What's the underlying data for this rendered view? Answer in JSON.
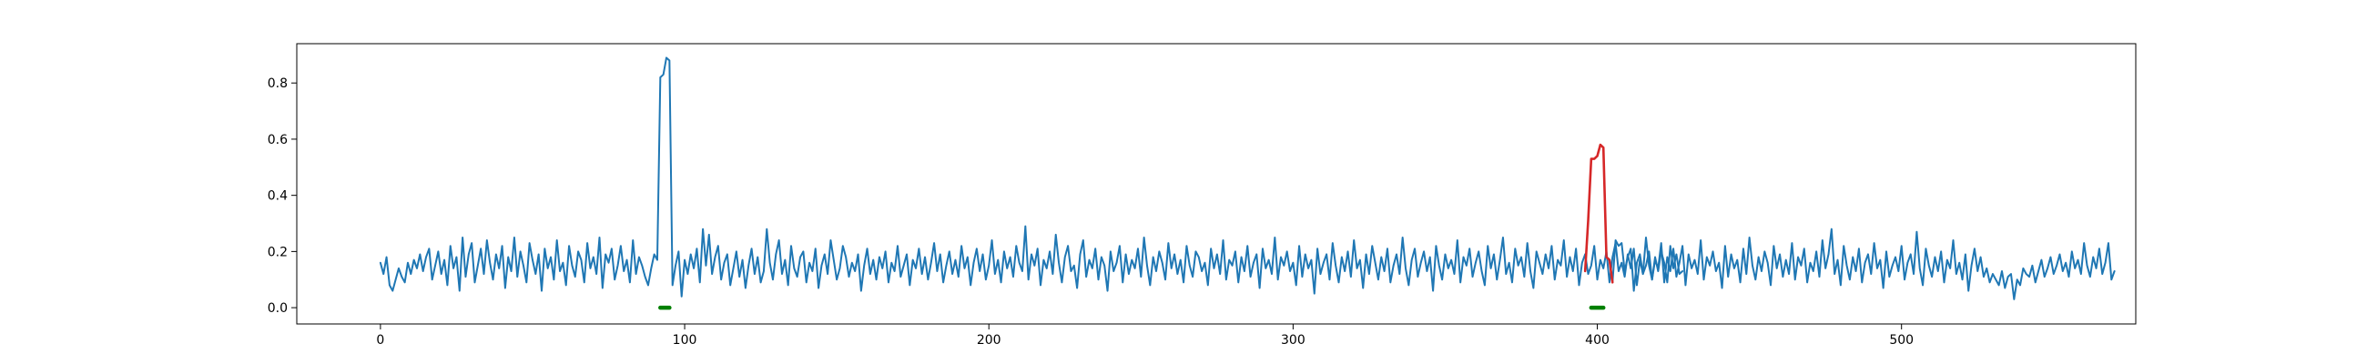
{
  "chart_data": {
    "type": "line",
    "title": "",
    "xlabel": "",
    "ylabel": "",
    "xlim": [
      -27.5,
      577
    ],
    "ylim": [
      -0.058,
      0.94
    ],
    "grid": false,
    "legend": null,
    "x_ticks": [
      {
        "value": 0,
        "label": "0"
      },
      {
        "value": 100,
        "label": "100"
      },
      {
        "value": 200,
        "label": "200"
      },
      {
        "value": 300,
        "label": "300"
      },
      {
        "value": 400,
        "label": "400"
      },
      {
        "value": 500,
        "label": "500"
      }
    ],
    "y_ticks": [
      {
        "value": 0.0,
        "label": "0.0"
      },
      {
        "value": 0.2,
        "label": "0.2"
      },
      {
        "value": 0.4,
        "label": "0.4"
      },
      {
        "value": 0.6,
        "label": "0.6"
      },
      {
        "value": 0.8,
        "label": "0.8"
      }
    ],
    "series": [
      {
        "color": "#1f77b4",
        "segments": [
          {
            "x_start": 0,
            "step": 1,
            "values": [
              0.16,
              0.12,
              0.18,
              0.08,
              0.06,
              0.1,
              0.14,
              0.11,
              0.09,
              0.16,
              0.12,
              0.17,
              0.14,
              0.19,
              0.13,
              0.18,
              0.21,
              0.1,
              0.15,
              0.2,
              0.12,
              0.17,
              0.08,
              0.22,
              0.14,
              0.18,
              0.06,
              0.25,
              0.11,
              0.19,
              0.23,
              0.09,
              0.15,
              0.21,
              0.12,
              0.24,
              0.16,
              0.1,
              0.19,
              0.14,
              0.22,
              0.07,
              0.18,
              0.13,
              0.25,
              0.11,
              0.2,
              0.15,
              0.09,
              0.23,
              0.17,
              0.12,
              0.19,
              0.06,
              0.21,
              0.14,
              0.18,
              0.1,
              0.24,
              0.13,
              0.16,
              0.08,
              0.22,
              0.15,
              0.11,
              0.2,
              0.17,
              0.09,
              0.23,
              0.14,
              0.18,
              0.12,
              0.25,
              0.07,
              0.19,
              0.16,
              0.21,
              0.1,
              0.15,
              0.22,
              0.13,
              0.17,
              0.09,
              0.24,
              0.12,
              0.18,
              0.15,
              0.11,
              0.08,
              0.14,
              0.19,
              0.17,
              0.82,
              0.83,
              0.89,
              0.88,
              0.08,
              0.15,
              0.2,
              0.04,
              0.17,
              0.12,
              0.19,
              0.14,
              0.21,
              0.09,
              0.28,
              0.15,
              0.26,
              0.12,
              0.18,
              0.22,
              0.1,
              0.16,
              0.19,
              0.08,
              0.14,
              0.2,
              0.11,
              0.17,
              0.07,
              0.15,
              0.21,
              0.12,
              0.18,
              0.09,
              0.13,
              0.28,
              0.16,
              0.1,
              0.19,
              0.24,
              0.12,
              0.17,
              0.08,
              0.22,
              0.14,
              0.11,
              0.18,
              0.2,
              0.09,
              0.16,
              0.13,
              0.21,
              0.07,
              0.15,
              0.19,
              0.12,
              0.24,
              0.17,
              0.1,
              0.14,
              0.22,
              0.18,
              0.11,
              0.16,
              0.13,
              0.19,
              0.06,
              0.15,
              0.21,
              0.12,
              0.17,
              0.1,
              0.18,
              0.14,
              0.2,
              0.09,
              0.16,
              0.13,
              0.22,
              0.11,
              0.15,
              0.19,
              0.08,
              0.17,
              0.14,
              0.21,
              0.12,
              0.18,
              0.1,
              0.16,
              0.23,
              0.13,
              0.19,
              0.09,
              0.15,
              0.2,
              0.12,
              0.17,
              0.11,
              0.22,
              0.14,
              0.18,
              0.08,
              0.16,
              0.21,
              0.13,
              0.19,
              0.1,
              0.15,
              0.24,
              0.12,
              0.17,
              0.09,
              0.2,
              0.14,
              0.18,
              0.11,
              0.22,
              0.16,
              0.13,
              0.29,
              0.1,
              0.19,
              0.15,
              0.21,
              0.08,
              0.17,
              0.14,
              0.2,
              0.12,
              0.26,
              0.16,
              0.09,
              0.18,
              0.22,
              0.13,
              0.15,
              0.07,
              0.19,
              0.24,
              0.11,
              0.17,
              0.14,
              0.21,
              0.1,
              0.18,
              0.15,
              0.06,
              0.2,
              0.13,
              0.16,
              0.22,
              0.09,
              0.19,
              0.12,
              0.17,
              0.14,
              0.21,
              0.11,
              0.25,
              0.15,
              0.08,
              0.18,
              0.13,
              0.2,
              0.16,
              0.1,
              0.23,
              0.14,
              0.19,
              0.12,
              0.17,
              0.09,
              0.22,
              0.15,
              0.11,
              0.2,
              0.18,
              0.13,
              0.16,
              0.08,
              0.21,
              0.14,
              0.19,
              0.12,
              0.24,
              0.1,
              0.17,
              0.15,
              0.2,
              0.09,
              0.18,
              0.13,
              0.22,
              0.11,
              0.16,
              0.19,
              0.07,
              0.21,
              0.14,
              0.17,
              0.12,
              0.25,
              0.1,
              0.18,
              0.15,
              0.2,
              0.13,
              0.16,
              0.08,
              0.22,
              0.11,
              0.19,
              0.14,
              0.17,
              0.05,
              0.21,
              0.12,
              0.16,
              0.19,
              0.1,
              0.23,
              0.15,
              0.09,
              0.18,
              0.13,
              0.2,
              0.11,
              0.24,
              0.14,
              0.17,
              0.07,
              0.19,
              0.12,
              0.22,
              0.16,
              0.1,
              0.18,
              0.13,
              0.21,
              0.09,
              0.15,
              0.19,
              0.12,
              0.25,
              0.14,
              0.08,
              0.17,
              0.21,
              0.11,
              0.16,
              0.2,
              0.13,
              0.18,
              0.06,
              0.22,
              0.15,
              0.1,
              0.19,
              0.14,
              0.17,
              0.12,
              0.24,
              0.09,
              0.18,
              0.15,
              0.21,
              0.11,
              0.16,
              0.2,
              0.13,
              0.08,
              0.22,
              0.14,
              0.19,
              0.1,
              0.17,
              0.25,
              0.12,
              0.16,
              0.09,
              0.21,
              0.15,
              0.18,
              0.11,
              0.23,
              0.13,
              0.07,
              0.2,
              0.16,
              0.12,
              0.19,
              0.14,
              0.22,
              0.1,
              0.17,
              0.15,
              0.24,
              0.11,
              0.18,
              0.13,
              0.21,
              0.08,
              0.16,
              0.19,
              0.12,
              0.15,
              0.22,
              0.1,
              0.17,
              0.14,
              0.2,
              0.09,
              0.18,
              0.23,
              0.13,
              0.16,
              0.11,
              0.19,
              0.14,
              0.21,
              0.08,
              0.17,
              0.12,
              0.25,
              0.15,
              0.1,
              0.18,
              0.13,
              0.2,
              0.16,
              0.09,
              0.22,
              0.14,
              0.19,
              0.12,
              0.13
            ]
          },
          {
            "x_start": 403,
            "step": 1,
            "values": [
              0.18,
              0.17,
              0.09,
              0.24,
              0.22,
              0.23,
              0.13,
              0.18,
              0.21,
              0.06,
              0.16,
              0.19,
              0.12,
              0.15,
              0.2,
              0.1,
              0.17,
              0.14,
              0.23,
              0.09,
              0.18,
              0.13,
              0.21,
              0.11,
              0.16,
              0.22,
              0.08,
              0.19,
              0.14,
              0.17,
              0.12,
              0.24,
              0.1,
              0.18,
              0.15,
              0.2,
              0.13,
              0.16,
              0.07,
              0.22,
              0.11,
              0.19,
              0.14,
              0.17,
              0.09,
              0.21,
              0.12,
              0.25,
              0.15,
              0.1,
              0.18,
              0.13,
              0.2,
              0.16,
              0.08,
              0.22,
              0.14,
              0.19,
              0.11,
              0.17,
              0.12,
              0.23,
              0.1,
              0.18,
              0.15,
              0.21,
              0.09,
              0.16,
              0.13,
              0.2,
              0.11,
              0.24,
              0.14,
              0.19,
              0.28,
              0.12,
              0.17,
              0.08,
              0.22,
              0.15,
              0.1,
              0.18,
              0.13,
              0.21,
              0.09,
              0.16,
              0.19,
              0.12,
              0.23,
              0.14,
              0.17,
              0.07,
              0.2,
              0.11,
              0.15,
              0.18,
              0.13,
              0.22,
              0.1,
              0.16,
              0.19,
              0.12,
              0.27,
              0.14,
              0.08,
              0.21,
              0.15,
              0.11,
              0.18,
              0.13,
              0.2,
              0.09,
              0.17,
              0.14,
              0.24,
              0.12,
              0.16,
              0.1,
              0.19,
              0.06,
              0.15,
              0.21,
              0.13,
              0.18,
              0.11,
              0.14,
              0.09,
              0.12,
              0.1,
              0.08,
              0.13,
              0.07,
              0.11,
              0.12,
              0.03,
              0.1,
              0.08,
              0.14,
              0.12,
              0.11,
              0.15,
              0.09,
              0.13,
              0.17,
              0.11,
              0.14,
              0.18,
              0.12,
              0.15,
              0.19,
              0.13,
              0.16,
              0.11,
              0.2,
              0.14,
              0.17,
              0.12,
              0.23,
              0.15,
              0.11,
              0.18,
              0.14,
              0.21,
              0.12,
              0.16,
              0.23,
              0.1,
              0.13
            ]
          }
        ]
      },
      {
        "color": "#d62728",
        "segments": [
          {
            "x_start": 396,
            "step": 1,
            "values": [
              0.13,
              0.31,
              0.53,
              0.53,
              0.54,
              0.58,
              0.57,
              0.18,
              0.17,
              0.09
            ]
          }
        ]
      }
    ],
    "markers": [
      {
        "color": "#008000",
        "x_start": 92,
        "x_end": 95,
        "y": 0.0
      },
      {
        "color": "#008000",
        "x_start": 398,
        "x_end": 402,
        "y": 0.0
      }
    ]
  }
}
